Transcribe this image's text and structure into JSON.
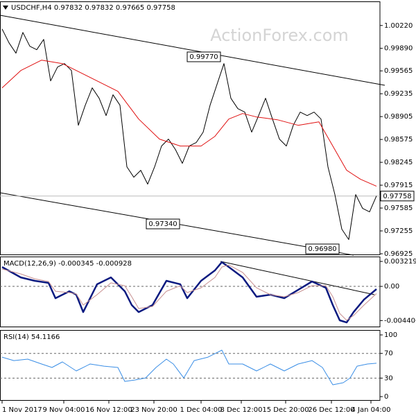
{
  "chart_data": [
    {
      "type": "line",
      "title": "USDCHF,H4 0.97832 0.97832 0.97665 0.97758",
      "watermark": "ActionForex.com",
      "xlim": [
        -0.3,
        54.5
      ],
      "ylim": [
        0.96905,
        1.00568
      ],
      "yticks": [
        {
          "value": 1.0022,
          "label": "1.00220"
        },
        {
          "value": 0.9989,
          "label": "0.99890"
        },
        0.99565,
        0.99235,
        0.98905,
        0.98575,
        0.98245,
        0.97915,
        0.97585,
        0.97255,
        0.96925
      ],
      "last_price": {
        "value": 0.97758,
        "label": "0.97758"
      },
      "annotations": [
        "0.99770",
        "0.97340",
        "0.96980"
      ],
      "series": [
        {
          "color": "#000000",
          "x": [
            0,
            1,
            2,
            3,
            4,
            5,
            6,
            7,
            8,
            9,
            10,
            11,
            12,
            13,
            14,
            15,
            16,
            17,
            18,
            19,
            20,
            21,
            22,
            23,
            24,
            25,
            26,
            27,
            28,
            29,
            30,
            31,
            32,
            33,
            34,
            35,
            36,
            37,
            38,
            39,
            40,
            41,
            42,
            43,
            44,
            45,
            46,
            47,
            48,
            49,
            50,
            51,
            52,
            53,
            54
          ],
          "values": [
            1.0017,
            0.9997,
            0.9982,
            1.0012,
            0.9992,
            0.9987,
            1.0002,
            0.9942,
            0.9962,
            0.9967,
            0.9957,
            0.9878,
            0.9907,
            0.9932,
            0.9917,
            0.9892,
            0.9922,
            0.9907,
            0.9818,
            0.9803,
            0.9813,
            0.9793,
            0.9818,
            0.9848,
            0.9858,
            0.9843,
            0.9823,
            0.9848,
            0.9853,
            0.9868,
            0.9907,
            0.9937,
            0.9967,
            0.9917,
            0.9902,
            0.9897,
            0.9868,
            0.9892,
            0.9917,
            0.9887,
            0.9858,
            0.9848,
            0.9878,
            0.9897,
            0.9892,
            0.9897,
            0.9887,
            0.9818,
            0.9778,
            0.9728,
            0.9713,
            0.9778,
            0.9758,
            0.9753,
            0.9776
          ]
        },
        {
          "color": "#e01010",
          "x": [
            0,
            2.7,
            5.7,
            8.7,
            10.7,
            13.7,
            16.7,
            19.7,
            22.7,
            25.7,
            28.7,
            30.7,
            32.7,
            34.7,
            36.7,
            39.7,
            42.7,
            45.7,
            47.7,
            49.7,
            51.7,
            54
          ],
          "values": [
            0.9932,
            0.9957,
            0.9972,
            0.9967,
            0.9957,
            0.9942,
            0.9927,
            0.9887,
            0.9858,
            0.9848,
            0.9848,
            0.9862,
            0.9887,
            0.9895,
            0.989,
            0.9886,
            0.9878,
            0.9883,
            0.9848,
            0.9813,
            0.98,
            0.979
          ]
        }
      ]
    },
    {
      "type": "line",
      "title": "MACD(12,26,9) -0.000345 -0.000928",
      "xlim": [
        -0.3,
        54.5
      ],
      "ylim": [
        -0.00527,
        0.00385
      ],
      "yticks": [
        0.003219,
        {
          "value": 0,
          "label": "0.00"
        },
        -0.004406
      ],
      "hlines": [
        0
      ],
      "series": [
        {
          "color": "#0a1a80",
          "width": 2.5,
          "x": [
            0,
            2.7,
            4.7,
            6.7,
            7.7,
            9.7,
            10.7,
            11.7,
            13.7,
            15.7,
            17.7,
            18.7,
            19.7,
            21.7,
            23.7,
            25.7,
            26.7,
            28.7,
            30.7,
            31.7,
            32.7,
            34.7,
            36.7,
            38.7,
            40.7,
            42.7,
            44.7,
            46.7,
            47.7,
            48.7,
            49.7,
            50.7,
            52.2,
            54
          ],
          "values": [
            0.0025,
            0.00116,
            0.00072,
            0.00045,
            -0.00152,
            -0.00063,
            -0.00107,
            -0.00331,
            0.00027,
            0.00116,
            -0.00063,
            -0.00241,
            -0.00331,
            -0.00241,
            0.00072,
            0.00027,
            -0.00152,
            0.00072,
            0.00206,
            0.00313,
            0.0025,
            0.00116,
            -0.00134,
            -0.00107,
            -0.00152,
            -0.00045,
            0.00063,
            -0.00018,
            -0.00241,
            -0.00438,
            -0.00465,
            -0.00331,
            -0.0017,
            -0.00035
          ]
        },
        {
          "color": "#c89090",
          "width": 1,
          "x": [
            0,
            2.7,
            4.7,
            6.7,
            7.7,
            9.7,
            10.7,
            11.7,
            13.7,
            15.7,
            17.7,
            18.7,
            19.7,
            21.7,
            23.7,
            25.7,
            26.7,
            28.7,
            30.7,
            31.7,
            32.7,
            34.7,
            36.7,
            38.7,
            40.7,
            42.7,
            44.7,
            46.7,
            47.7,
            48.7,
            49.7,
            50.7,
            52.2,
            54
          ],
          "values": [
            0.00224,
            0.00161,
            0.00098,
            0.00063,
            -0.00063,
            -0.0008,
            -0.00098,
            -0.00241,
            -0.00107,
            0.00045,
            9e-05,
            -0.00134,
            -0.00286,
            -0.00259,
            -0.00063,
            9e-05,
            -0.0008,
            -0.00018,
            0.00116,
            0.0025,
            0.00277,
            0.00179,
            -0.00018,
            -0.00107,
            -0.00134,
            -0.0008,
            9e-05,
            9e-05,
            -0.00134,
            -0.00349,
            -0.00438,
            -0.00375,
            -0.00241,
            -0.00093
          ]
        }
      ]
    },
    {
      "type": "line",
      "title": "RSI(14) 54.1166",
      "xlim": [
        -0.3,
        54.5
      ],
      "ylim": [
        -6.7,
        107.9
      ],
      "yticks": [
        100,
        70,
        30,
        0
      ],
      "hlines": [
        70,
        30
      ],
      "xticks": [
        {
          "value": 0,
          "label": "1 Nov 2017"
        },
        {
          "value": 8.9,
          "label": "9 Nov 04:00"
        },
        {
          "value": 15.4,
          "label": "16 Nov 12:00"
        },
        {
          "value": 21.9,
          "label": "23 Nov 20:00"
        },
        {
          "value": 28.7,
          "label": "1 Dec 04:00"
        },
        {
          "value": 34.5,
          "label": "8 Dec 12:00"
        },
        {
          "value": 40.9,
          "label": "15 Dec 20:00"
        },
        {
          "value": 47.5,
          "label": "26 Dec 12:00"
        },
        {
          "value": 53.2,
          "label": "4 Jan 04:00"
        }
      ],
      "series": [
        {
          "color": "#3a8ee6",
          "width": 1,
          "x": [
            0,
            1.7,
            3.7,
            5.7,
            7.2,
            8.7,
            10.7,
            12.7,
            14.7,
            16.7,
            17.7,
            19.2,
            20.7,
            22.2,
            23.7,
            24.7,
            26.2,
            27.7,
            29.7,
            31.7,
            32.7,
            34.7,
            36.7,
            38.7,
            40.7,
            42.7,
            44.7,
            46.2,
            47.7,
            49.2,
            50.2,
            51.2,
            52.7,
            54
          ],
          "values": [
            64,
            58.4,
            60.7,
            52.8,
            47.2,
            56.2,
            41.6,
            52.8,
            49.4,
            47.2,
            24.7,
            27,
            30.3,
            47.2,
            60.7,
            52.8,
            30.3,
            58.4,
            64,
            75.3,
            52.8,
            52.8,
            41.6,
            52.8,
            41.6,
            52.8,
            58.4,
            47.2,
            19.1,
            22.5,
            30.3,
            49.4,
            52.8,
            54.1
          ]
        }
      ]
    }
  ]
}
